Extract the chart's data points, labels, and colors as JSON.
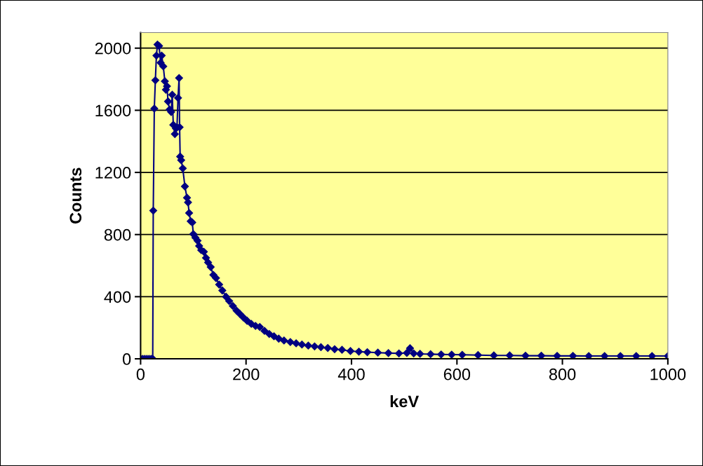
{
  "chart_data": {
    "type": "line",
    "xlabel": "keV",
    "ylabel": "Counts",
    "x": [
      0,
      4,
      8,
      12,
      16,
      20,
      23,
      24,
      26,
      28,
      30,
      32,
      35,
      38,
      40,
      43,
      46,
      48,
      50,
      52,
      55,
      58,
      60,
      62,
      65,
      67,
      69,
      71,
      73,
      74,
      75,
      77,
      80,
      84,
      88,
      90,
      92,
      95,
      98,
      100,
      104,
      108,
      111,
      115,
      120,
      124,
      128,
      133,
      138,
      143,
      149,
      155,
      162,
      168,
      175,
      182,
      188,
      195,
      202,
      210,
      218,
      226,
      235,
      244,
      253,
      262,
      272,
      284,
      295,
      306,
      318,
      330,
      342,
      355,
      368,
      382,
      398,
      414,
      430,
      450,
      470,
      490,
      505,
      511,
      518,
      530,
      550,
      570,
      590,
      610,
      640,
      670,
      700,
      730,
      760,
      790,
      820,
      850,
      880,
      910,
      940,
      970,
      1000
    ],
    "series": [
      {
        "color": "#000080",
        "values": [
          0,
          0,
          0,
          0,
          0,
          0,
          0,
          954,
          1611,
          1793,
          1952,
          2023,
          2014,
          1906,
          1952,
          1883,
          1787,
          1732,
          1755,
          1657,
          1605,
          1589,
          1700,
          1506,
          1447,
          1483,
          1491,
          1680,
          1808,
          1491,
          1302,
          1279,
          1226,
          1110,
          1037,
          1007,
          939,
          886,
          878,
          803,
          780,
          760,
          727,
          700,
          689,
          650,
          620,
          591,
          540,
          520,
          478,
          440,
          400,
          372,
          340,
          310,
          290,
          266,
          245,
          225,
          212,
          205,
          180,
          160,
          145,
          130,
          118,
          108,
          100,
          92,
          85,
          80,
          75,
          70,
          62,
          58,
          50,
          46,
          43,
          40,
          37,
          35,
          38,
          68,
          35,
          32,
          30,
          28,
          27,
          26,
          24,
          22,
          22,
          20,
          20,
          19,
          19,
          18,
          18,
          18,
          18,
          18,
          18
        ]
      }
    ],
    "xlim": [
      0,
      1000
    ],
    "xticks": [
      0,
      200,
      400,
      600,
      800,
      1000
    ],
    "ylim": [
      0,
      2100
    ],
    "yticks": [
      0,
      400,
      800,
      1200,
      1600,
      2000
    ],
    "grid": "y",
    "marker": "diamond",
    "line_style": "solid"
  }
}
